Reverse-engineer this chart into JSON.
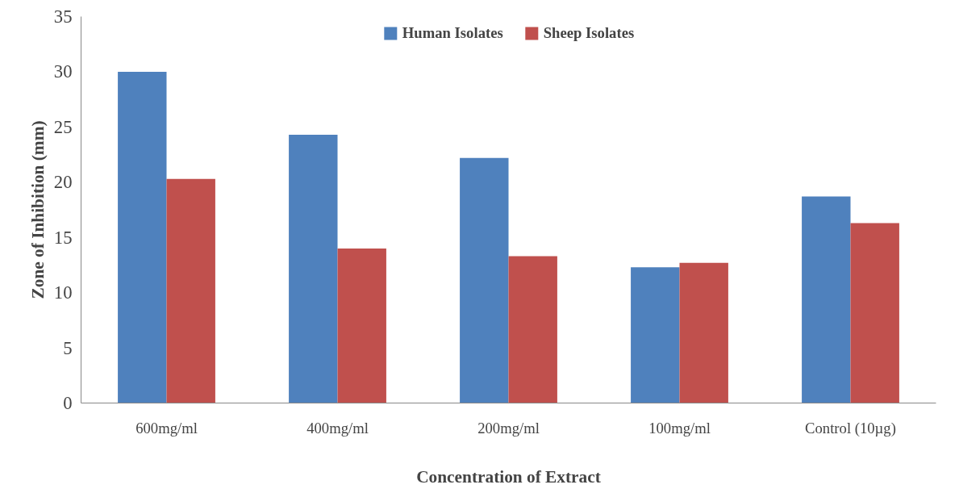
{
  "chart_data": {
    "type": "bar",
    "xlabel": "Concentration of Extract",
    "ylabel": "Zone of Inhibition (mm)",
    "categories": [
      "600mg/ml",
      "400mg/ml",
      "200mg/ml",
      "100mg/ml",
      "Control (10µg)"
    ],
    "series": [
      {
        "name": "Human Isolates",
        "color": "#4f81bd",
        "values": [
          30,
          24.3,
          22.2,
          12.3,
          18.7
        ]
      },
      {
        "name": "Sheep Isolates",
        "color": "#c0504d",
        "values": [
          20.3,
          14,
          13.3,
          12.7,
          16.3
        ]
      }
    ],
    "ylim": [
      0,
      35
    ],
    "yticks": [
      0,
      5,
      10,
      15,
      20,
      25,
      30,
      35
    ],
    "grid": false,
    "legend": "top"
  }
}
